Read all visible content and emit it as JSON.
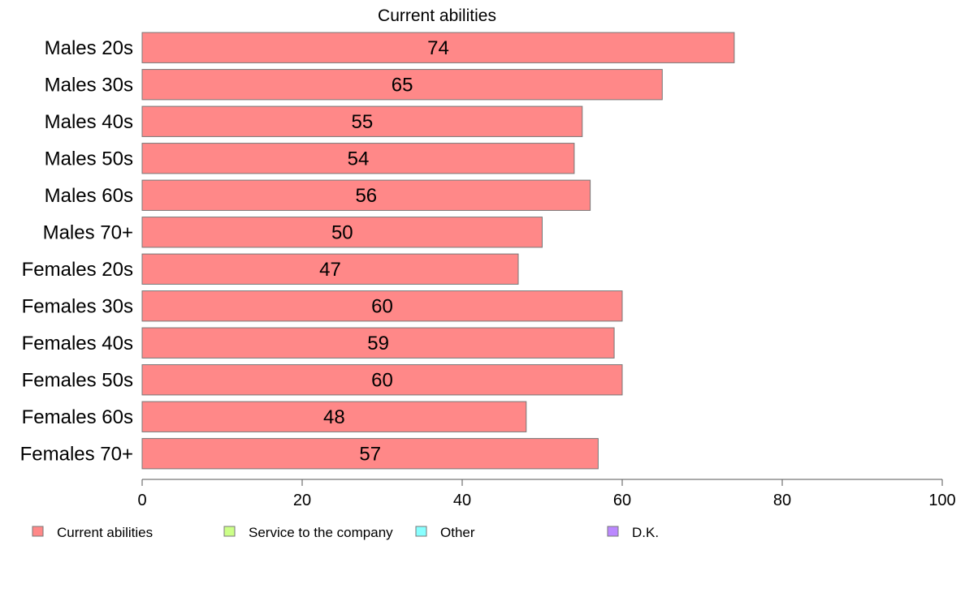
{
  "chart_data": {
    "type": "bar",
    "orientation": "horizontal",
    "title": "Current abilities",
    "categories": [
      "Males 20s",
      "Males 30s",
      "Males 40s",
      "Males 50s",
      "Males 60s",
      "Males 70+",
      "Females 20s",
      "Females 30s",
      "Females 40s",
      "Females 50s",
      "Females 60s",
      "Females 70+"
    ],
    "series": [
      {
        "name": "Current abilities",
        "values": [
          74,
          65,
          55,
          54,
          56,
          50,
          47,
          60,
          59,
          60,
          48,
          57
        ],
        "color": "#ff8888"
      }
    ],
    "xlim": [
      0,
      100
    ],
    "xticks": [
      0,
      20,
      40,
      60,
      80,
      100
    ],
    "grid": false,
    "legend": {
      "placement": "bottom",
      "items": [
        {
          "label": "Current abilities",
          "color": "#ff8888"
        },
        {
          "label": "Service to the company",
          "color": "#ccff88"
        },
        {
          "label": "Other",
          "color": "#88ffff"
        },
        {
          "label": "D.K.",
          "color": "#bb88ff"
        }
      ]
    }
  }
}
